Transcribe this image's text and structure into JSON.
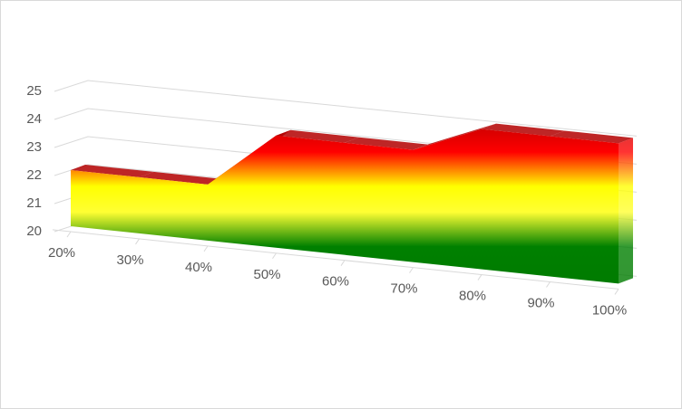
{
  "chart_data": {
    "type": "area3d",
    "categories": [
      "20%",
      "30%",
      "40%",
      "50%",
      "60%",
      "70%",
      "80%",
      "90%",
      "100%"
    ],
    "values": [
      22,
      22,
      22,
      24,
      24,
      24,
      25,
      25,
      25
    ],
    "ylim": [
      20,
      25
    ],
    "yticks": [
      20,
      21,
      22,
      23,
      24,
      25
    ],
    "grid": true
  }
}
